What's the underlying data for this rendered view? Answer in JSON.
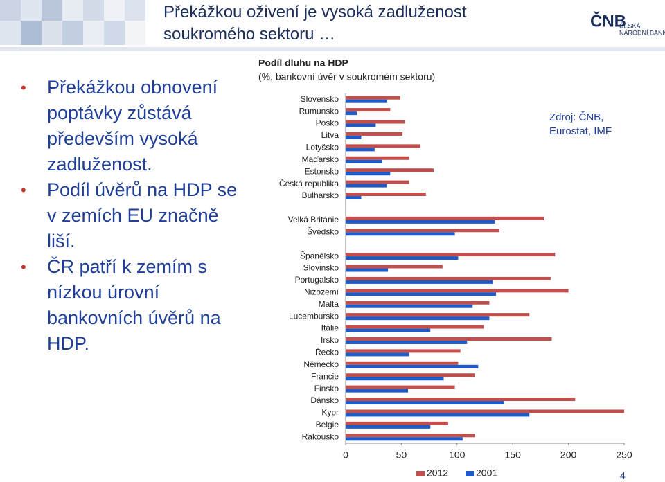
{
  "slide": {
    "title": "Překážkou oživení je vysoká zadluženost soukromého sektoru …",
    "logo": {
      "mark": "ČNB",
      "line1": "ČESKÁ",
      "line2": "NÁRODNÍ BANKA"
    },
    "bullets": [
      "Překážkou obnovení poptávky zůstává především vysoká zadluženost.",
      "Podíl úvěrů na HDP se v zemích EU značně liší.",
      "ČR patří k zemím s nízkou úrovní bankovních úvěrů na HDP."
    ],
    "source": "Zdroj: ČNB, Eurostat, IMF",
    "page_number": "4"
  },
  "chart_data": {
    "type": "bar",
    "orientation": "horizontal",
    "title": "Podíl dluhu na HDP",
    "subtitle": "(%, bankovní úvěr v soukromém sektoru)",
    "categories": [
      "Slovensko",
      "Rumunsko",
      "Posko",
      "Litva",
      "Lotyšsko",
      "Maďarsko",
      "Estonsko",
      "Česká republika",
      "Bulharsko",
      null,
      "Velká Británie",
      "Švédsko",
      null,
      "Španělsko",
      "Slovinsko",
      "Portugalsko",
      "Nizozemí",
      "Malta",
      "Lucembursko",
      "Itálie",
      "Irsko",
      "Řecko",
      "Německo",
      "Francie",
      "Finsko",
      "Dánsko",
      "Kypr",
      "Belgie",
      "Rakousko"
    ],
    "series": [
      {
        "name": "2012",
        "color": "#c0504d",
        "values": [
          49,
          40,
          53,
          51,
          67,
          57,
          79,
          57,
          72,
          null,
          178,
          138,
          null,
          188,
          87,
          184,
          200,
          129,
          165,
          124,
          185,
          103,
          101,
          116,
          98,
          206,
          250,
          92,
          116
        ]
      },
      {
        "name": "2001",
        "color": "#1f5bc6",
        "values": [
          37,
          10,
          27,
          14,
          26,
          33,
          40,
          37,
          14,
          null,
          134,
          98,
          null,
          101,
          38,
          132,
          135,
          114,
          129,
          76,
          109,
          57,
          119,
          88,
          56,
          142,
          165,
          76,
          105
        ]
      }
    ],
    "xlim": [
      0,
      250
    ],
    "xticks": [
      0,
      50,
      100,
      150,
      200,
      250
    ],
    "grid": false,
    "legend": "bottom"
  }
}
